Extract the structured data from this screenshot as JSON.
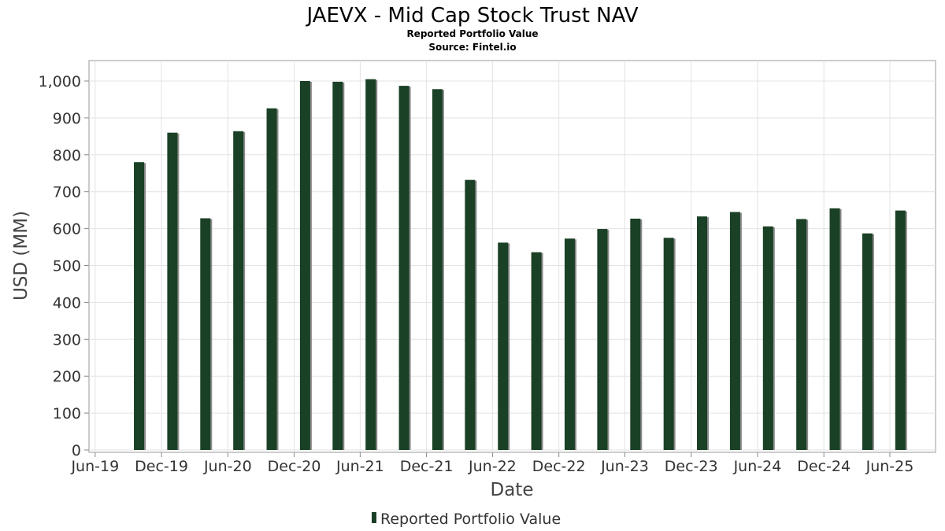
{
  "chart_data": {
    "type": "bar",
    "title": "JAEVX - Mid Cap Stock Trust NAV",
    "subtitle": "Reported Portfolio Value",
    "source": "Source: Fintel.io",
    "xlabel": "Date",
    "ylabel": "USD (MM)",
    "ylim": [
      0,
      1050
    ],
    "yticks": [
      0,
      100,
      200,
      300,
      400,
      500,
      600,
      700,
      800,
      900,
      1000
    ],
    "ytick_labels": [
      "0",
      "100",
      "200",
      "300",
      "400",
      "500",
      "600",
      "700",
      "800",
      "900",
      "1,000"
    ],
    "xlim": [
      "2019-05-15",
      "2025-10-05"
    ],
    "xticks": [
      "2019-06-01",
      "2019-12-01",
      "2020-06-01",
      "2020-12-01",
      "2021-06-01",
      "2021-12-01",
      "2022-06-01",
      "2022-12-01",
      "2023-06-01",
      "2023-12-01",
      "2024-06-01",
      "2024-12-01",
      "2025-06-01"
    ],
    "xtick_labels": [
      "Jun-19",
      "Dec-19",
      "Jun-20",
      "Dec-20",
      "Jun-21",
      "Dec-21",
      "Jun-22",
      "Dec-22",
      "Jun-23",
      "Dec-23",
      "Jun-24",
      "Dec-24",
      "Jun-25"
    ],
    "grid": true,
    "legend_position": "bottom",
    "color": "#1a4025",
    "series": [
      {
        "name": "Reported Portfolio Value",
        "x": [
          "2019-09-30",
          "2019-12-31",
          "2020-03-31",
          "2020-06-30",
          "2020-09-30",
          "2020-12-31",
          "2021-03-31",
          "2021-06-30",
          "2021-09-30",
          "2021-12-31",
          "2022-03-31",
          "2022-06-30",
          "2022-09-30",
          "2022-12-31",
          "2023-03-31",
          "2023-06-30",
          "2023-09-30",
          "2023-12-31",
          "2024-03-31",
          "2024-06-30",
          "2024-09-30",
          "2024-12-31",
          "2025-03-31",
          "2025-06-30"
        ],
        "values": [
          780,
          860,
          628,
          864,
          926,
          1000,
          998,
          1005,
          987,
          978,
          732,
          562,
          536,
          573,
          599,
          627,
          575,
          633,
          645,
          606,
          626,
          655,
          587,
          649
        ]
      }
    ]
  }
}
